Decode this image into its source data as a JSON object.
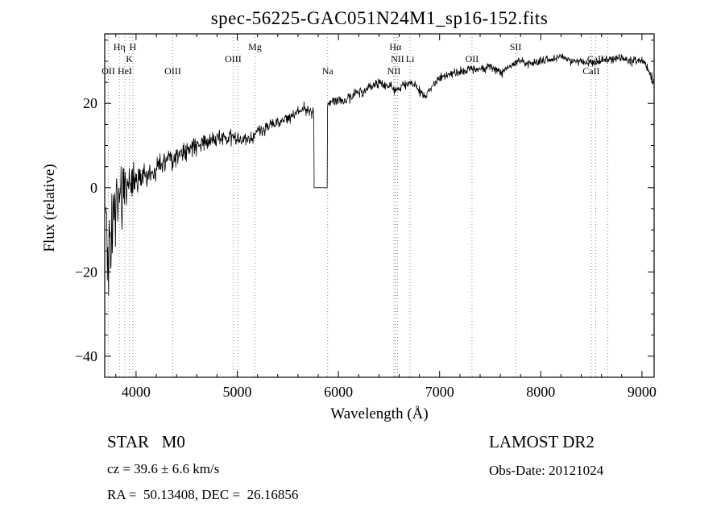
{
  "chart_data": {
    "type": "line",
    "title": "spec-56225-GAC051N24M1_sp16-152.fits",
    "xlabel": "Wavelength (Å)",
    "ylabel": "Flux (relative)",
    "xlim": [
      3690,
      9120
    ],
    "ylim": [
      -45,
      36.5
    ],
    "xticks": [
      4000,
      5000,
      6000,
      7000,
      8000,
      9000
    ],
    "yticks": [
      -40,
      -20,
      0,
      20
    ],
    "grid": false,
    "line_color": "#000000",
    "marker_line_color": "#888888",
    "background": "#ffffff",
    "gap": {
      "start": 5757,
      "end": 5890,
      "value": 0
    },
    "envelope": [
      [
        3700,
        -3
      ],
      [
        3730,
        -4
      ],
      [
        3770,
        -3
      ],
      [
        3800,
        -1
      ],
      [
        3850,
        0
      ],
      [
        3900,
        1
      ],
      [
        3950,
        1.5
      ],
      [
        4000,
        2
      ],
      [
        4100,
        3
      ],
      [
        4200,
        4.5
      ],
      [
        4300,
        6
      ],
      [
        4400,
        7.5
      ],
      [
        4500,
        9
      ],
      [
        4600,
        10
      ],
      [
        4700,
        11
      ],
      [
        4800,
        11.5
      ],
      [
        4900,
        12
      ],
      [
        5000,
        12
      ],
      [
        5060,
        11
      ],
      [
        5130,
        11.5
      ],
      [
        5200,
        13
      ],
      [
        5300,
        14.5
      ],
      [
        5400,
        15.5
      ],
      [
        5500,
        16.5
      ],
      [
        5560,
        17.5
      ],
      [
        5620,
        18.5
      ],
      [
        5660,
        19
      ],
      [
        5700,
        18
      ],
      [
        5745,
        17.5
      ],
      [
        5895,
        20
      ],
      [
        5950,
        20.5
      ],
      [
        6000,
        21
      ],
      [
        6060,
        20.5
      ],
      [
        6120,
        21.5
      ],
      [
        6180,
        22.5
      ],
      [
        6240,
        22.8
      ],
      [
        6300,
        24
      ],
      [
        6360,
        24.5
      ],
      [
        6420,
        25
      ],
      [
        6460,
        24
      ],
      [
        6520,
        24.5
      ],
      [
        6563,
        22.8
      ],
      [
        6600,
        23.5
      ],
      [
        6660,
        24.5
      ],
      [
        6700,
        25
      ],
      [
        6760,
        24
      ],
      [
        6820,
        22.5
      ],
      [
        6870,
        22
      ],
      [
        6920,
        23.5
      ],
      [
        6960,
        25
      ],
      [
        7000,
        26
      ],
      [
        7100,
        27
      ],
      [
        7200,
        27.5
      ],
      [
        7300,
        28
      ],
      [
        7400,
        28
      ],
      [
        7500,
        28.5
      ],
      [
        7560,
        28
      ],
      [
        7610,
        27
      ],
      [
        7660,
        28.5
      ],
      [
        7700,
        29
      ],
      [
        7800,
        30
      ],
      [
        7900,
        29.5
      ],
      [
        8000,
        30
      ],
      [
        8100,
        30.5
      ],
      [
        8200,
        31
      ],
      [
        8300,
        30
      ],
      [
        8400,
        30
      ],
      [
        8500,
        29.5
      ],
      [
        8600,
        30
      ],
      [
        8700,
        30.5
      ],
      [
        8800,
        31
      ],
      [
        8900,
        30
      ],
      [
        8960,
        30.5
      ],
      [
        9000,
        30
      ],
      [
        9050,
        28.5
      ],
      [
        9110,
        25
      ]
    ],
    "noise_amp": [
      [
        3700,
        8
      ],
      [
        3800,
        6
      ],
      [
        3900,
        4.5
      ],
      [
        4000,
        3.5
      ],
      [
        4200,
        2.5
      ],
      [
        4500,
        2
      ],
      [
        5000,
        1.6
      ],
      [
        5500,
        1.3
      ],
      [
        5900,
        1.1
      ],
      [
        6500,
        1
      ],
      [
        7500,
        0.9
      ],
      [
        8800,
        0.9
      ],
      [
        9000,
        1.1
      ],
      [
        9110,
        1.9
      ]
    ],
    "spikes": [
      [
        3706,
        -12
      ],
      [
        3716,
        -22
      ],
      [
        3727,
        -31
      ],
      [
        3739,
        -14
      ],
      [
        3750,
        -26
      ],
      [
        3766,
        -19
      ],
      [
        3782,
        -9
      ],
      [
        3796,
        -14
      ],
      [
        3820,
        -8
      ],
      [
        3860,
        -10
      ],
      [
        3905,
        -6
      ]
    ],
    "spectral_lines": [
      {
        "wavelength": 3727,
        "label": "OII",
        "row": 3
      },
      {
        "wavelength": 3835,
        "label": "Hη",
        "row": 1
      },
      {
        "wavelength": 3889,
        "label": "HeI",
        "row": 3
      },
      {
        "wavelength": 3934,
        "label": "K",
        "row": 2
      },
      {
        "wavelength": 3969,
        "label": "H",
        "row": 1
      },
      {
        "wavelength": 4363,
        "label": "OIII",
        "row": 3
      },
      {
        "wavelength": 4959,
        "label": "OIII",
        "row": 2
      },
      {
        "wavelength": 5007,
        "label": "",
        "row": 0
      },
      {
        "wavelength": 5175,
        "label": "Mg",
        "row": 1
      },
      {
        "wavelength": 5893,
        "label": "Na",
        "row": 3
      },
      {
        "wavelength": 6548,
        "label": "NII",
        "row": 3
      },
      {
        "wavelength": 6563,
        "label": "Hα",
        "row": 1
      },
      {
        "wavelength": 6583,
        "label": "NII",
        "row": 2
      },
      {
        "wavelength": 6708,
        "label": "Li",
        "row": 2
      },
      {
        "wavelength": 7320,
        "label": "OII",
        "row": 2
      },
      {
        "wavelength": 7751,
        "label": "SII",
        "row": 1
      },
      {
        "wavelength": 8498,
        "label": "CaII",
        "row": 3
      },
      {
        "wavelength": 8542,
        "label": "CaII",
        "row": 2
      },
      {
        "wavelength": 8662,
        "label": "",
        "row": 0
      }
    ]
  },
  "annotations": {
    "class_label": "STAR   M0",
    "survey": "LAMOST DR2",
    "cz": "cz = 39.6 ± 6.6 km/s",
    "obs_date": "Obs-Date: 20121024",
    "coords": "RA =  50.13408, DEC =  26.16856"
  }
}
